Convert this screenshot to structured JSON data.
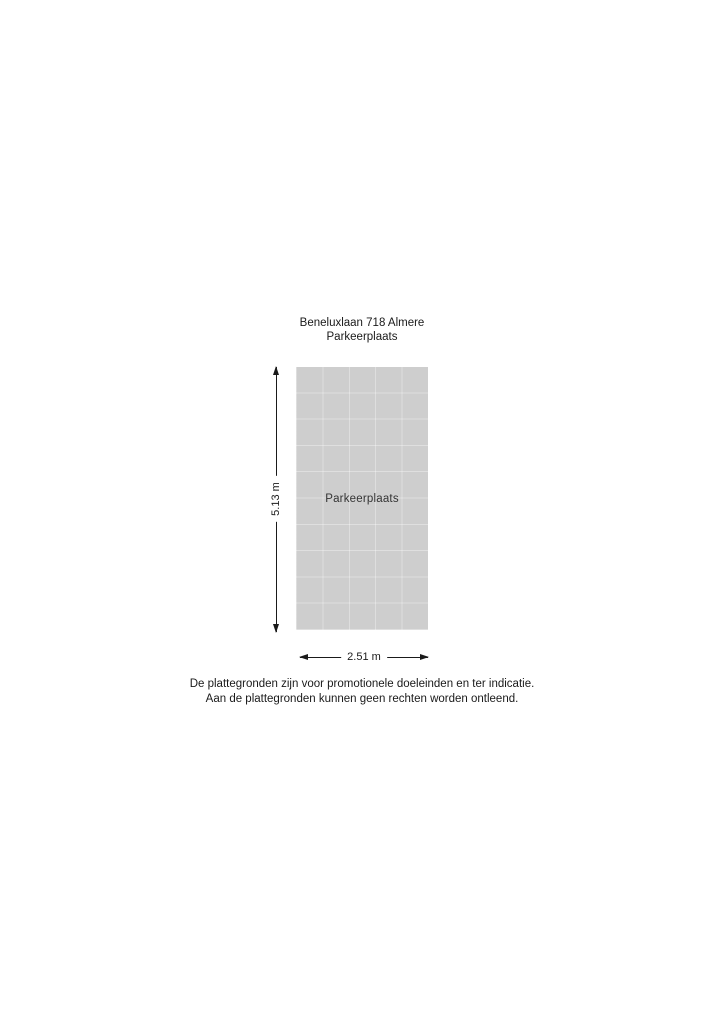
{
  "header": {
    "title_line1": "Beneluxlaan 718 Almere",
    "title_line2": "Parkeerplaats"
  },
  "plan": {
    "room_label": "Parkeerplaats",
    "height_dimension": "5.13 m",
    "width_dimension": "2.51 m",
    "floor_color": "#d4d4d4",
    "line_color": "#1a1a1a"
  },
  "footer": {
    "disclaimer_line1": "De plattegronden zijn voor promotionele doeleinden en ter indicatie.",
    "disclaimer_line2": "Aan de plattegronden kunnen geen rechten worden ontleend."
  }
}
